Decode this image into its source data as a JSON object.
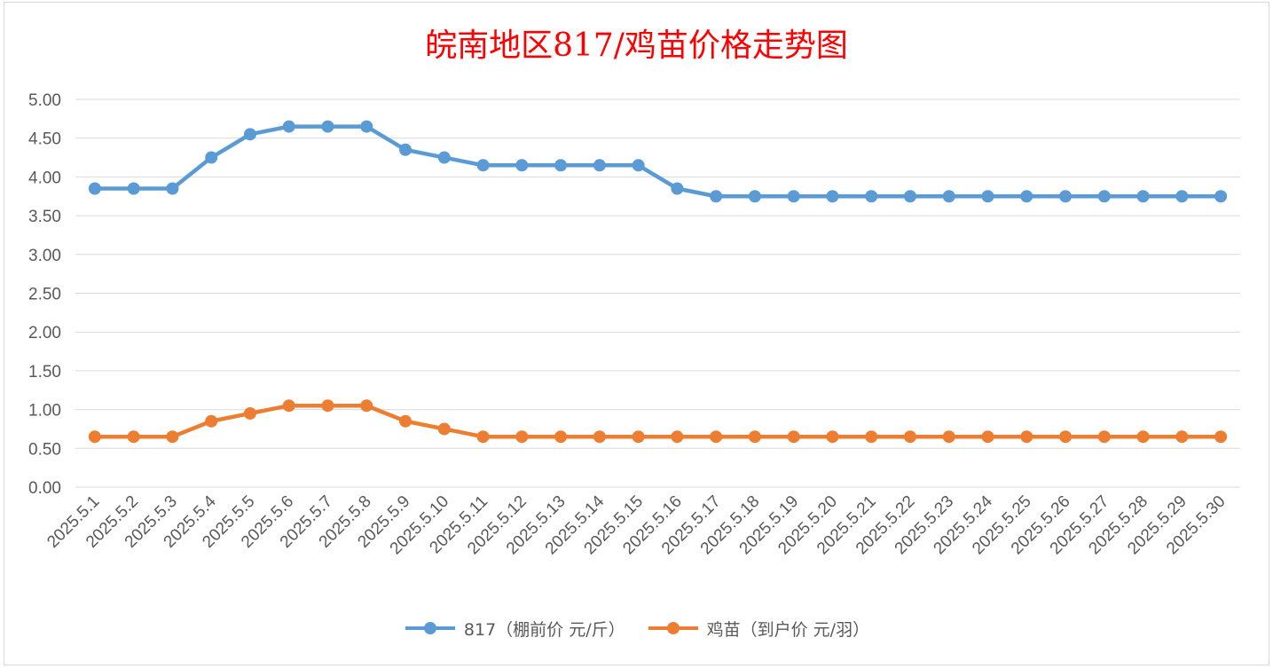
{
  "chart_data": {
    "type": "line",
    "title": "皖南地区817/鸡苗价格走势图",
    "title_color": "#ff0000",
    "categories": [
      "2025.5.1",
      "2025.5.2",
      "2025.5.3",
      "2025.5.4",
      "2025.5.5",
      "2025.5.6",
      "2025.5.7",
      "2025.5.8",
      "2025.5.9",
      "2025.5.10",
      "2025.5.11",
      "2025.5.12",
      "2025.5.13",
      "2025.5.14",
      "2025.5.15",
      "2025.5.16",
      "2025.5.17",
      "2025.5.18",
      "2025.5.19",
      "2025.5.20",
      "2025.5.21",
      "2025.5.22",
      "2025.5.23",
      "2025.5.24",
      "2025.5.25",
      "2025.5.26",
      "2025.5.27",
      "2025.5.28",
      "2025.5.29",
      "2025.5.30"
    ],
    "series": [
      {
        "name": "817（棚前价 元/斤）",
        "color": "#5b9bd5",
        "values": [
          3.85,
          3.85,
          3.85,
          4.25,
          4.55,
          4.65,
          4.65,
          4.65,
          4.35,
          4.25,
          4.15,
          4.15,
          4.15,
          4.15,
          4.15,
          3.85,
          3.75,
          3.75,
          3.75,
          3.75,
          3.75,
          3.75,
          3.75,
          3.75,
          3.75,
          3.75,
          3.75,
          3.75,
          3.75,
          3.75
        ]
      },
      {
        "name": "鸡苗（到户价 元/羽）",
        "color": "#ed7d31",
        "values": [
          0.65,
          0.65,
          0.65,
          0.85,
          0.95,
          1.05,
          1.05,
          1.05,
          0.85,
          0.75,
          0.65,
          0.65,
          0.65,
          0.65,
          0.65,
          0.65,
          0.65,
          0.65,
          0.65,
          0.65,
          0.65,
          0.65,
          0.65,
          0.65,
          0.65,
          0.65,
          0.65,
          0.65,
          0.65,
          0.65
        ]
      }
    ],
    "y_ticks": [
      "0.00",
      "0.50",
      "1.00",
      "1.50",
      "2.00",
      "2.50",
      "3.00",
      "3.50",
      "4.00",
      "4.50",
      "5.00"
    ],
    "ylim": [
      0,
      5
    ],
    "grid": true,
    "legend_position": "bottom"
  }
}
